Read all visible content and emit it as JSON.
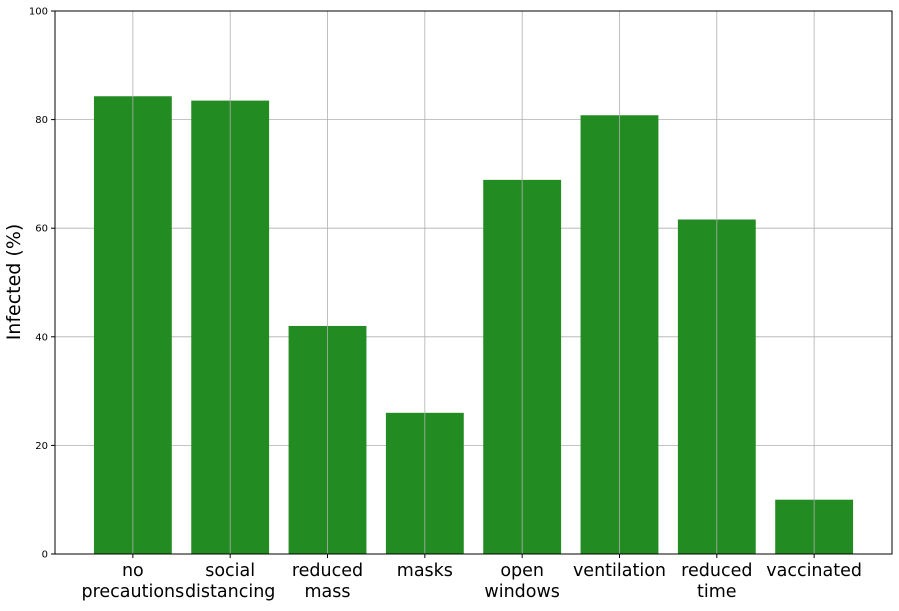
{
  "chart_data": {
    "type": "bar",
    "title": "",
    "xlabel": "",
    "ylabel": "Infected (%)",
    "ylim": [
      0,
      100
    ],
    "yticks": [
      0,
      20,
      40,
      60,
      80,
      100
    ],
    "grid": true,
    "categories": [
      [
        "no",
        "precautions"
      ],
      [
        "social",
        "distancing"
      ],
      [
        "reduced",
        "mass"
      ],
      [
        "masks"
      ],
      [
        "open",
        "windows"
      ],
      [
        "ventilation"
      ],
      [
        "reduced",
        "time"
      ],
      [
        "vaccinated"
      ]
    ],
    "values": [
      84.3,
      83.5,
      42.0,
      26.0,
      68.9,
      80.8,
      61.6,
      10.0
    ],
    "bar_color": "#228b22",
    "grid_color": "#b0b0b0"
  }
}
